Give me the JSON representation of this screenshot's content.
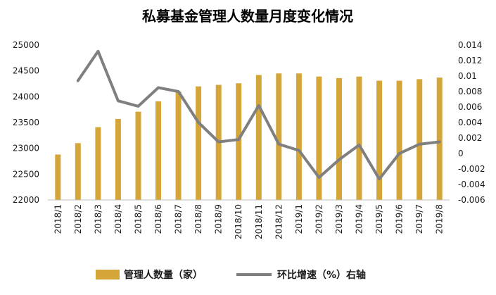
{
  "chart_data": {
    "type": "bar+line",
    "title": "私募基金管理人数量月度变化情况",
    "categories": [
      "2018/1",
      "2018/2",
      "2018/3",
      "2018/4",
      "2018/5",
      "2018/6",
      "2018/7",
      "2018/8",
      "2018/9",
      "2018/10",
      "2018/11",
      "2018/12",
      "2019/1",
      "2019/2",
      "2019/3",
      "2019/4",
      "2019/5",
      "2019/6",
      "2019/7",
      "2019/8"
    ],
    "series": [
      {
        "name": "管理人数量（家）",
        "type": "bar",
        "axis": "left",
        "color": "#D4A63A",
        "values": [
          22880,
          23100,
          23410,
          23570,
          23710,
          23910,
          24100,
          24200,
          24230,
          24260,
          24420,
          24450,
          24450,
          24390,
          24360,
          24390,
          24310,
          24310,
          24340,
          24370
        ]
      },
      {
        "name": "环比增速（%）右轴",
        "type": "line",
        "axis": "right",
        "color": "#7F7F7F",
        "values": [
          null,
          0.0094,
          0.0132,
          0.0068,
          0.0061,
          0.0085,
          0.008,
          0.004,
          0.0015,
          0.0018,
          0.0062,
          0.0012,
          0.0004,
          -0.0031,
          -0.0008,
          0.0011,
          -0.0033,
          0.0,
          0.0012,
          0.0015
        ]
      }
    ],
    "y_left": {
      "min": 22000,
      "max": 25000,
      "ticks": [
        "22000",
        "22500",
        "23000",
        "23500",
        "24000",
        "24500",
        "25000"
      ]
    },
    "y_right": {
      "min": -0.006,
      "max": 0.014,
      "ticks": [
        "-0.006",
        "-0.004",
        "-0.002",
        "0",
        "0.002",
        "0.004",
        "0.006",
        "0.008",
        "0.01",
        "0.012",
        "0.014"
      ]
    },
    "grid": false,
    "legend_position": "bottom"
  }
}
